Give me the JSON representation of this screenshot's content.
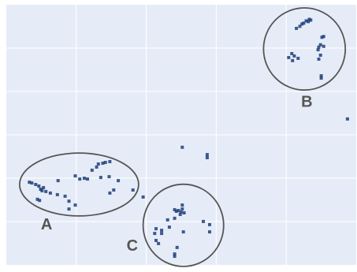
{
  "chart_data": {
    "type": "scatter",
    "title": "",
    "xlabel": "",
    "ylabel": "",
    "grid": true,
    "colors": {
      "background": "#e6ecf7",
      "grid": "#ffffff",
      "point": "#1f3f7a",
      "ellipse_stroke": "#555555",
      "label": "#555555"
    },
    "xlim": [
      0,
      100
    ],
    "ylim": [
      0,
      100
    ],
    "points": [
      {
        "x": 86.6,
        "y": 94.4
      },
      {
        "x": 87.0,
        "y": 94.1
      },
      {
        "x": 85.7,
        "y": 93.8
      },
      {
        "x": 86.3,
        "y": 93.5
      },
      {
        "x": 85.0,
        "y": 92.9
      },
      {
        "x": 84.5,
        "y": 92.6
      },
      {
        "x": 83.9,
        "y": 91.7
      },
      {
        "x": 82.9,
        "y": 90.9
      },
      {
        "x": 90.7,
        "y": 87.8
      },
      {
        "x": 90.2,
        "y": 87.5
      },
      {
        "x": 89.8,
        "y": 84.6
      },
      {
        "x": 89.3,
        "y": 83.7
      },
      {
        "x": 89.1,
        "y": 82.7
      },
      {
        "x": 90.7,
        "y": 84.0
      },
      {
        "x": 81.6,
        "y": 81.2
      },
      {
        "x": 82.3,
        "y": 80.3
      },
      {
        "x": 83.4,
        "y": 79.4
      },
      {
        "x": 80.7,
        "y": 79.7
      },
      {
        "x": 81.8,
        "y": 78.5
      },
      {
        "x": 89.8,
        "y": 80.6
      },
      {
        "x": 89.3,
        "y": 79.1
      },
      {
        "x": 90.0,
        "y": 72.7
      },
      {
        "x": 90.0,
        "y": 71.8
      },
      {
        "x": 97.5,
        "y": 56.1
      },
      {
        "x": 6.6,
        "y": 31.8
      },
      {
        "x": 7.3,
        "y": 31.5
      },
      {
        "x": 8.4,
        "y": 30.9
      },
      {
        "x": 9.3,
        "y": 30.3
      },
      {
        "x": 10.6,
        "y": 29.7
      },
      {
        "x": 9.8,
        "y": 29.1
      },
      {
        "x": 10.2,
        "y": 28.5
      },
      {
        "x": 11.3,
        "y": 28.2
      },
      {
        "x": 12.6,
        "y": 27.6
      },
      {
        "x": 14.6,
        "y": 27.0
      },
      {
        "x": 16.8,
        "y": 26.4
      },
      {
        "x": 8.9,
        "y": 25.2
      },
      {
        "x": 9.5,
        "y": 24.8
      },
      {
        "x": 14.8,
        "y": 32.4
      },
      {
        "x": 17.9,
        "y": 24.5
      },
      {
        "x": 19.7,
        "y": 23.0
      },
      {
        "x": 17.9,
        "y": 21.5
      },
      {
        "x": 19.7,
        "y": 34.2
      },
      {
        "x": 21.0,
        "y": 33.0
      },
      {
        "x": 22.3,
        "y": 33.3
      },
      {
        "x": 23.2,
        "y": 33.0
      },
      {
        "x": 24.5,
        "y": 36.4
      },
      {
        "x": 25.8,
        "y": 37.6
      },
      {
        "x": 26.3,
        "y": 38.8
      },
      {
        "x": 27.6,
        "y": 39.1
      },
      {
        "x": 28.3,
        "y": 39.4
      },
      {
        "x": 29.6,
        "y": 39.7
      },
      {
        "x": 27.0,
        "y": 33.6
      },
      {
        "x": 29.4,
        "y": 33.9
      },
      {
        "x": 32.0,
        "y": 32.4
      },
      {
        "x": 30.7,
        "y": 28.8
      },
      {
        "x": 29.6,
        "y": 27.6
      },
      {
        "x": 36.2,
        "y": 28.8
      },
      {
        "x": 39.1,
        "y": 26.1
      },
      {
        "x": 50.3,
        "y": 45.2
      },
      {
        "x": 57.4,
        "y": 42.4
      },
      {
        "x": 57.4,
        "y": 41.2
      },
      {
        "x": 48.1,
        "y": 21.2
      },
      {
        "x": 48.6,
        "y": 20.6
      },
      {
        "x": 49.2,
        "y": 20.9
      },
      {
        "x": 49.9,
        "y": 20.3
      },
      {
        "x": 50.3,
        "y": 21.5
      },
      {
        "x": 50.8,
        "y": 20.0
      },
      {
        "x": 49.7,
        "y": 19.4
      },
      {
        "x": 50.3,
        "y": 23.0
      },
      {
        "x": 48.1,
        "y": 17.9
      },
      {
        "x": 46.1,
        "y": 17.3
      },
      {
        "x": 56.3,
        "y": 16.7
      },
      {
        "x": 58.1,
        "y": 15.5
      },
      {
        "x": 58.1,
        "y": 12.7
      },
      {
        "x": 46.6,
        "y": 14.5
      },
      {
        "x": 44.4,
        "y": 13.3
      },
      {
        "x": 42.8,
        "y": 13.9
      },
      {
        "x": 42.4,
        "y": 12.1
      },
      {
        "x": 50.6,
        "y": 12.7
      },
      {
        "x": 44.4,
        "y": 12.1
      },
      {
        "x": 42.8,
        "y": 9.4
      },
      {
        "x": 43.5,
        "y": 8.2
      },
      {
        "x": 48.8,
        "y": 6.7
      },
      {
        "x": 48.1,
        "y": 4.2
      },
      {
        "x": 48.1,
        "y": 3.3
      }
    ],
    "annotations": [
      {
        "label": "A",
        "cx": 20.8,
        "cy": 30.9,
        "rx": 17.0,
        "ry": 12.1,
        "label_x": 11.5,
        "label_y": 15.2
      },
      {
        "label": "B",
        "cx": 85.2,
        "cy": 83.0,
        "rx": 11.7,
        "ry": 15.8,
        "label_x": 85.9,
        "label_y": 62.4
      },
      {
        "label": "C",
        "cx": 50.6,
        "cy": 15.2,
        "rx": 11.5,
        "ry": 15.8,
        "label_x": 36.0,
        "label_y": 7.0
      }
    ]
  }
}
